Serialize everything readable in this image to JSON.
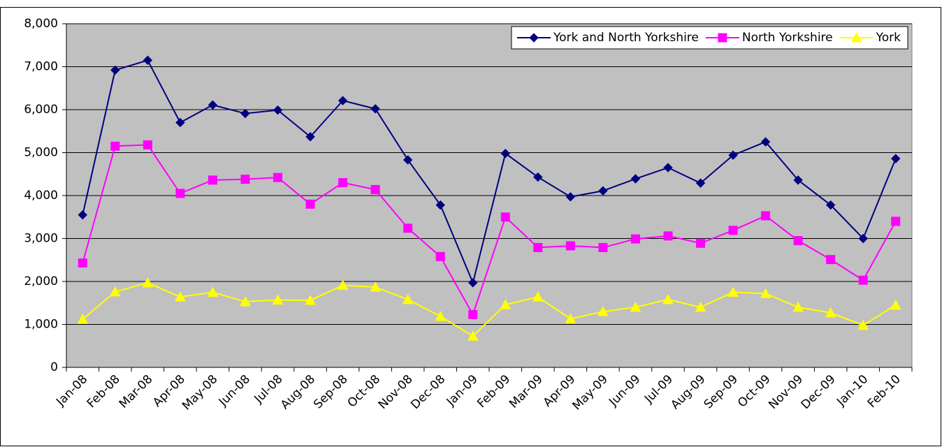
{
  "chart_data": {
    "type": "line",
    "categories": [
      "Jan-08",
      "Feb-08",
      "Mar-08",
      "Apr-08",
      "May-08",
      "Jun-08",
      "Jul-08",
      "Aug-08",
      "Sep-08",
      "Oct-08",
      "Nov-08",
      "Dec-08",
      "Jan-09",
      "Feb-09",
      "Mar-09",
      "Apr-09",
      "May-09",
      "Jun-09",
      "Jul-09",
      "Aug-09",
      "Sep-09",
      "Oct-09",
      "Nov-09",
      "Dec-09",
      "Jan-10",
      "Feb-10"
    ],
    "series": [
      {
        "name": "York and North Yorkshire",
        "color": "#000080",
        "marker": "diamond",
        "values": [
          3550,
          6920,
          7150,
          5700,
          6110,
          5910,
          5990,
          5370,
          6210,
          6020,
          4830,
          3780,
          1970,
          4980,
          4430,
          3970,
          4110,
          4390,
          4650,
          4290,
          4940,
          5250,
          4360,
          3780,
          3000,
          4860
        ]
      },
      {
        "name": "North Yorkshire",
        "color": "#ff00ff",
        "marker": "square",
        "values": [
          2430,
          5150,
          5180,
          4050,
          4360,
          4380,
          4420,
          3800,
          4300,
          4140,
          3240,
          2580,
          1230,
          3500,
          2790,
          2830,
          2790,
          2990,
          3060,
          2890,
          3190,
          3530,
          2950,
          2510,
          2030,
          3400
        ]
      },
      {
        "name": "York",
        "color": "#ffff00",
        "marker": "triangle",
        "values": [
          1120,
          1760,
          1970,
          1640,
          1750,
          1530,
          1570,
          1560,
          1910,
          1870,
          1580,
          1190,
          730,
          1460,
          1640,
          1130,
          1300,
          1400,
          1580,
          1400,
          1750,
          1720,
          1400,
          1270,
          980,
          1450
        ]
      }
    ],
    "ylim": [
      0,
      8000
    ],
    "yticks": [
      0,
      {
        "value": 1000,
        "label": "1,000"
      },
      {
        "value": 2000,
        "label": "2,000"
      },
      {
        "value": 3000,
        "label": "3,000"
      },
      {
        "value": 4000,
        "label": "4,000"
      },
      {
        "value": 5000,
        "label": "5,000"
      },
      {
        "value": 6000,
        "label": "6,000"
      },
      {
        "value": 7000,
        "label": "7,000"
      },
      {
        "value": 8000,
        "label": "8,000"
      }
    ],
    "grid": true,
    "legend": "top-right",
    "plot_background": "#c0c0c0"
  }
}
